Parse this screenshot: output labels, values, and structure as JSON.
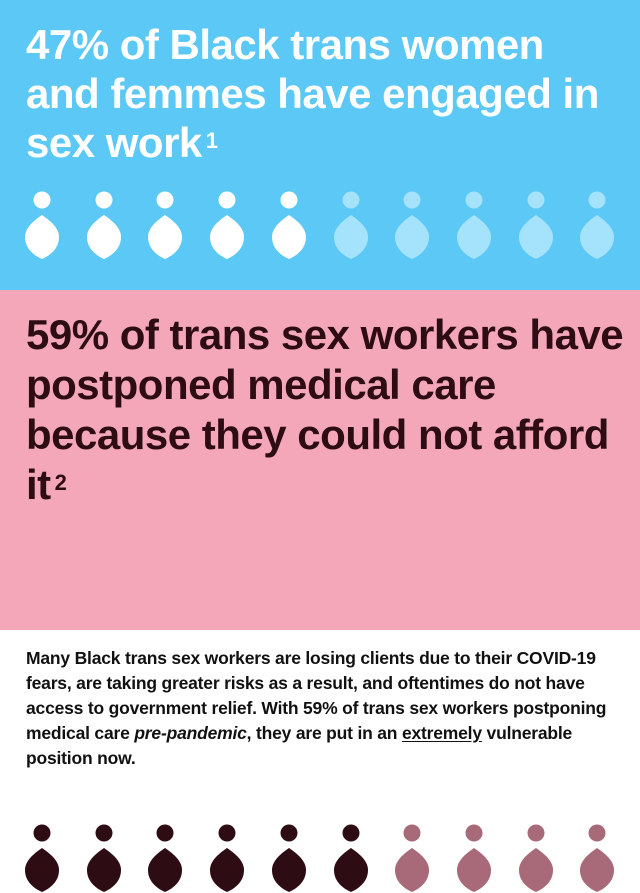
{
  "stat_one": {
    "text": "47% of Black trans women and femmes have engaged in sex work",
    "footnote": "1",
    "count_highlighted": 5,
    "count_total": 10,
    "colors": {
      "background": "#5bc8f5",
      "highlight": "#ffffff",
      "muted": "#a5e2fb"
    }
  },
  "stat_two": {
    "text": "59% of trans sex workers have postponed medical care because they could not afford it",
    "footnote": "2",
    "count_highlighted": 6,
    "count_total": 10,
    "colors": {
      "background": "#f4a7b9",
      "highlight": "#2e0c14",
      "muted": "#a86a78"
    }
  },
  "explanation": {
    "part1": "Many Black trans sex workers are losing clients due to their COVID-19 fears, are taking greater risks as a result, and oftentimes do not have access to government relief. With 59% of trans sex workers postponing medical care ",
    "emphasis": "pre-pandemic",
    "part2": ", they are put in an ",
    "underline": "extremely",
    "part3": " vulnerable position now."
  },
  "icons": {
    "person": "person-pin-icon"
  }
}
